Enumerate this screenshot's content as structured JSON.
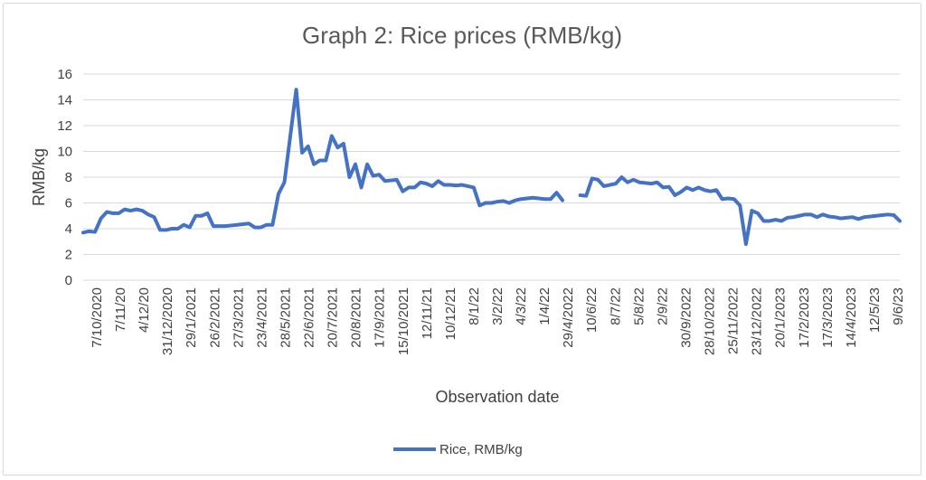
{
  "chart_data": {
    "type": "line",
    "title": "Graph 2: Rice prices (RMB/kg)",
    "xlabel": "Observation date",
    "ylabel": "RMB/kg",
    "ylim": [
      0,
      16
    ],
    "yticks": [
      0,
      2,
      4,
      6,
      8,
      10,
      12,
      14,
      16
    ],
    "grid": "horizontal",
    "legend_position": "bottom",
    "series_color": "#4472C4",
    "x_tick_labels": [
      "7/10/2020",
      "7/11/20",
      "4/12/20",
      "31/12/2020",
      "29/1/2021",
      "26/2/2021",
      "27/3/2021",
      "23/4/2021",
      "28/5/2021",
      "22/6/2021",
      "20/7/2021",
      "20/8/2021",
      "17/9/2021",
      "15/10/2021",
      "12/11/21",
      "10/12/21",
      "8/1/22",
      "3/2/22",
      "4/3/22",
      "1/4/22",
      "29/4/2022",
      "10/6/22",
      "8/7/22",
      "5/8/22",
      "2/9/22",
      "30/9/2022",
      "28/10/2022",
      "25/11/2022",
      "23/12/2022",
      "20/1/2023",
      "17/2/2023",
      "17/3/2023",
      "14/4/2023",
      "12/5/23",
      "9/6/23"
    ],
    "series": [
      {
        "name": "Rice, RMB/kg",
        "segments": [
          [
            3.7,
            3.8,
            3.75,
            4.8,
            5.3,
            5.2,
            5.2,
            5.5,
            5.4,
            5.5,
            5.4,
            5.1,
            4.9,
            3.9,
            3.9,
            4.0,
            4.0,
            4.3,
            4.1,
            5.0,
            5.0,
            5.2,
            4.2,
            4.2,
            4.2,
            4.25,
            4.3,
            4.35,
            4.4,
            4.1,
            4.1,
            4.3,
            4.3,
            6.7,
            7.6,
            11.2,
            14.8,
            9.9,
            10.4,
            9.0,
            9.3,
            9.3,
            11.2,
            10.3,
            10.6,
            8.0,
            9.0,
            7.2,
            9.0,
            8.1,
            8.2,
            7.7,
            7.75,
            7.8,
            6.9,
            7.2,
            7.2,
            7.6,
            7.5,
            7.3,
            7.7,
            7.4,
            7.4,
            7.35,
            7.4,
            7.3,
            7.2,
            5.8,
            6.0,
            6.0,
            6.1,
            6.15,
            6.0,
            6.2,
            6.3,
            6.35,
            6.4,
            6.35,
            6.3,
            6.3,
            6.8,
            6.2
          ],
          [
            6.6,
            6.55,
            7.9,
            7.8,
            7.3,
            7.4,
            7.5,
            8.0,
            7.6,
            7.8,
            7.6,
            7.55,
            7.5,
            7.6,
            7.2,
            7.25,
            6.6,
            6.85,
            7.2,
            7.0,
            7.2,
            7.0,
            6.9,
            7.0,
            6.3,
            6.35,
            6.3,
            5.8,
            2.8,
            5.4,
            5.2,
            4.6,
            4.6,
            4.7,
            4.6,
            4.85,
            4.9,
            5.0,
            5.1,
            5.1,
            4.9,
            5.1,
            4.95,
            4.9,
            4.8,
            4.85,
            4.9,
            4.75,
            4.9,
            4.95,
            5.0,
            5.05,
            5.1,
            5.05,
            4.6
          ]
        ]
      }
    ]
  }
}
